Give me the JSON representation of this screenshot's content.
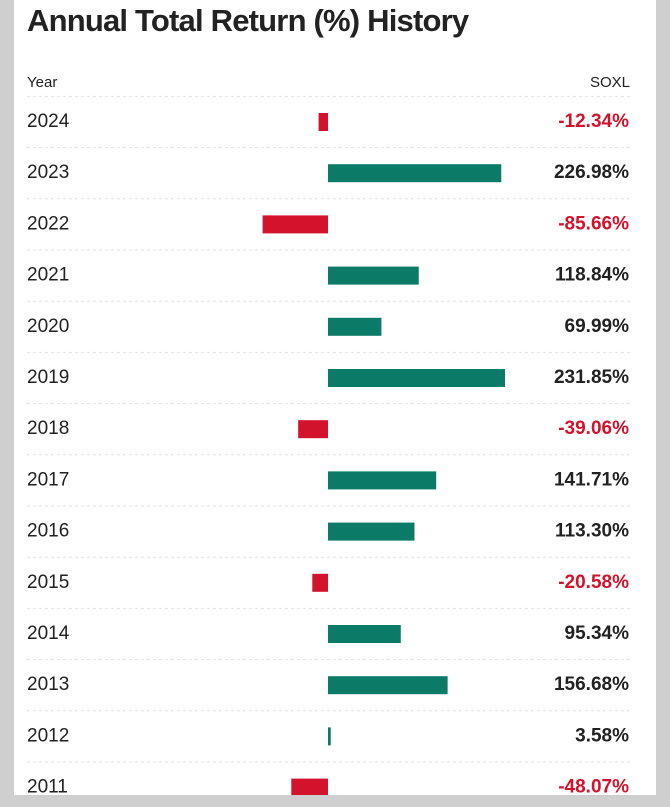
{
  "chart_data": {
    "type": "bar",
    "title": "Annual Total Return (%) History",
    "x_label": "Year",
    "categories": [
      "2024",
      "2023",
      "2022",
      "2021",
      "2020",
      "2019",
      "2018",
      "2017",
      "2016",
      "2015",
      "2014",
      "2013",
      "2012",
      "2011"
    ],
    "series": [
      {
        "name": "SOXL",
        "values": [
          -12.34,
          226.98,
          -85.66,
          118.84,
          69.99,
          231.85,
          -39.06,
          141.71,
          113.3,
          -20.58,
          95.34,
          156.68,
          3.58,
          -48.07
        ],
        "value_labels": [
          "-12.34%",
          "226.98%",
          "-85.66%",
          "118.84%",
          "69.99%",
          "231.85%",
          "-39.06%",
          "141.71%",
          "113.30%",
          "-20.58%",
          "95.34%",
          "156.68%",
          "3.58%",
          "-48.07%"
        ]
      }
    ],
    "positive_color": "#0b7a66",
    "negative_color": "#d3122c"
  }
}
